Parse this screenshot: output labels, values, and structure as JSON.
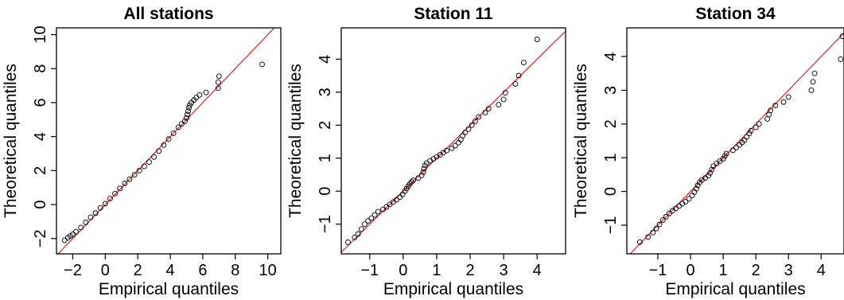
{
  "chart_data": [
    {
      "type": "scatter",
      "title": "All stations",
      "xlabel": "Empirical quantiles",
      "ylabel": "Theoretical quantiles",
      "xlim": [
        -3.0,
        10.8
      ],
      "ylim": [
        -2.9,
        10.4
      ],
      "xticks": [
        "-2",
        "0",
        "2",
        "4",
        "6",
        "8",
        "10"
      ],
      "yticks": [
        "-2",
        "0",
        "2",
        "4",
        "6",
        "8",
        "10"
      ],
      "xtick_values": [
        -2,
        0,
        2,
        4,
        6,
        8,
        10
      ],
      "ytick_values": [
        -2,
        0,
        2,
        4,
        6,
        8,
        10
      ],
      "reference_line": "y = x",
      "points": [
        [
          -2.5,
          -2.1
        ],
        [
          -2.3,
          -1.95
        ],
        [
          -2.15,
          -1.85
        ],
        [
          -2.0,
          -1.75
        ],
        [
          -1.8,
          -1.6
        ],
        [
          -1.5,
          -1.35
        ],
        [
          -1.2,
          -1.05
        ],
        [
          -0.9,
          -0.75
        ],
        [
          -0.6,
          -0.5
        ],
        [
          -0.3,
          -0.2
        ],
        [
          0.0,
          0.05
        ],
        [
          0.3,
          0.35
        ],
        [
          0.6,
          0.65
        ],
        [
          0.9,
          0.95
        ],
        [
          1.2,
          1.25
        ],
        [
          1.5,
          1.5
        ],
        [
          1.8,
          1.75
        ],
        [
          2.1,
          2.0
        ],
        [
          2.4,
          2.25
        ],
        [
          2.7,
          2.5
        ],
        [
          3.0,
          2.8
        ],
        [
          3.3,
          3.15
        ],
        [
          3.6,
          3.5
        ],
        [
          3.9,
          3.85
        ],
        [
          4.2,
          4.2
        ],
        [
          4.5,
          4.55
        ],
        [
          4.7,
          4.75
        ],
        [
          4.9,
          4.9
        ],
        [
          5.0,
          5.1
        ],
        [
          5.05,
          5.3
        ],
        [
          5.1,
          5.5
        ],
        [
          5.15,
          5.7
        ],
        [
          5.2,
          5.85
        ],
        [
          5.3,
          6.0
        ],
        [
          5.45,
          6.15
        ],
        [
          5.6,
          6.3
        ],
        [
          5.8,
          6.45
        ],
        [
          6.2,
          6.6
        ],
        [
          6.95,
          6.85
        ],
        [
          6.95,
          7.2
        ],
        [
          7.0,
          7.55
        ],
        [
          9.65,
          8.25
        ]
      ]
    },
    {
      "type": "scatter",
      "title": "Station 11",
      "xlabel": "Empirical quantiles",
      "ylabel": "Theoretical quantiles",
      "xlim": [
        -1.85,
        4.85
      ],
      "ylim": [
        -1.9,
        4.95
      ],
      "xticks": [
        "-1",
        "0",
        "1",
        "2",
        "3",
        "4"
      ],
      "yticks": [
        "-1",
        "0",
        "1",
        "2",
        "3",
        "4"
      ],
      "xtick_values": [
        -1,
        0,
        1,
        2,
        3,
        4
      ],
      "ytick_values": [
        -1,
        0,
        1,
        2,
        3,
        4
      ],
      "reference_line": "y = x",
      "points": [
        [
          -1.65,
          -1.55
        ],
        [
          -1.45,
          -1.4
        ],
        [
          -1.35,
          -1.3
        ],
        [
          -1.25,
          -1.15
        ],
        [
          -1.15,
          -1.0
        ],
        [
          -1.05,
          -0.9
        ],
        [
          -0.95,
          -0.82
        ],
        [
          -0.85,
          -0.72
        ],
        [
          -0.75,
          -0.62
        ],
        [
          -0.6,
          -0.55
        ],
        [
          -0.5,
          -0.48
        ],
        [
          -0.4,
          -0.4
        ],
        [
          -0.3,
          -0.33
        ],
        [
          -0.2,
          -0.26
        ],
        [
          -0.1,
          -0.18
        ],
        [
          -0.02,
          -0.1
        ],
        [
          0.05,
          0.0
        ],
        [
          0.1,
          0.08
        ],
        [
          0.15,
          0.15
        ],
        [
          0.2,
          0.22
        ],
        [
          0.25,
          0.28
        ],
        [
          0.3,
          0.33
        ],
        [
          0.45,
          0.4
        ],
        [
          0.55,
          0.48
        ],
        [
          0.6,
          0.58
        ],
        [
          0.62,
          0.68
        ],
        [
          0.65,
          0.78
        ],
        [
          0.7,
          0.85
        ],
        [
          0.8,
          0.92
        ],
        [
          0.9,
          0.98
        ],
        [
          1.0,
          1.04
        ],
        [
          1.1,
          1.1
        ],
        [
          1.2,
          1.17
        ],
        [
          1.3,
          1.23
        ],
        [
          1.45,
          1.3
        ],
        [
          1.55,
          1.38
        ],
        [
          1.65,
          1.47
        ],
        [
          1.72,
          1.56
        ],
        [
          1.78,
          1.68
        ],
        [
          1.85,
          1.78
        ],
        [
          1.95,
          1.88
        ],
        [
          2.05,
          2.0
        ],
        [
          2.15,
          2.12
        ],
        [
          2.25,
          2.25
        ],
        [
          2.45,
          2.38
        ],
        [
          2.55,
          2.5
        ],
        [
          2.85,
          2.62
        ],
        [
          3.0,
          2.78
        ],
        [
          3.05,
          2.98
        ],
        [
          3.35,
          3.25
        ],
        [
          3.45,
          3.5
        ],
        [
          3.6,
          3.9
        ],
        [
          4.0,
          4.6
        ]
      ]
    },
    {
      "type": "scatter",
      "title": "Station 34",
      "xlabel": "Empirical quantiles",
      "ylabel": "Theoretical quantiles",
      "xlim": [
        -1.95,
        4.7
      ],
      "ylim": [
        -1.85,
        4.85
      ],
      "xticks": [
        "-1",
        "0",
        "1",
        "2",
        "3",
        "4"
      ],
      "yticks": [
        "-1",
        "0",
        "1",
        "2",
        "3",
        "4"
      ],
      "xtick_values": [
        -1,
        0,
        1,
        2,
        3,
        4
      ],
      "ytick_values": [
        -1,
        0,
        1,
        2,
        3,
        4
      ],
      "reference_line": "y = x",
      "points": [
        [
          -1.55,
          -1.5
        ],
        [
          -1.3,
          -1.35
        ],
        [
          -1.15,
          -1.22
        ],
        [
          -1.05,
          -1.1
        ],
        [
          -0.95,
          -0.98
        ],
        [
          -0.85,
          -0.85
        ],
        [
          -0.75,
          -0.75
        ],
        [
          -0.65,
          -0.65
        ],
        [
          -0.55,
          -0.57
        ],
        [
          -0.45,
          -0.5
        ],
        [
          -0.35,
          -0.43
        ],
        [
          -0.25,
          -0.36
        ],
        [
          -0.15,
          -0.3
        ],
        [
          -0.05,
          -0.22
        ],
        [
          0.05,
          -0.12
        ],
        [
          0.12,
          -0.02
        ],
        [
          0.18,
          0.08
        ],
        [
          0.22,
          0.18
        ],
        [
          0.28,
          0.27
        ],
        [
          0.35,
          0.34
        ],
        [
          0.45,
          0.4
        ],
        [
          0.55,
          0.47
        ],
        [
          0.6,
          0.55
        ],
        [
          0.65,
          0.65
        ],
        [
          0.7,
          0.75
        ],
        [
          0.8,
          0.83
        ],
        [
          0.9,
          0.9
        ],
        [
          1.0,
          0.97
        ],
        [
          1.05,
          1.05
        ],
        [
          1.1,
          1.12
        ],
        [
          1.3,
          1.22
        ],
        [
          1.4,
          1.3
        ],
        [
          1.5,
          1.38
        ],
        [
          1.58,
          1.45
        ],
        [
          1.65,
          1.52
        ],
        [
          1.72,
          1.62
        ],
        [
          1.8,
          1.72
        ],
        [
          1.85,
          1.8
        ],
        [
          2.0,
          1.9
        ],
        [
          2.1,
          2.0
        ],
        [
          2.35,
          2.15
        ],
        [
          2.4,
          2.28
        ],
        [
          2.45,
          2.4
        ],
        [
          2.6,
          2.55
        ],
        [
          2.85,
          2.65
        ],
        [
          3.0,
          2.8
        ],
        [
          3.7,
          3.0
        ],
        [
          3.75,
          3.25
        ],
        [
          3.8,
          3.5
        ],
        [
          4.6,
          3.92
        ],
        [
          4.65,
          4.6
        ]
      ]
    }
  ]
}
